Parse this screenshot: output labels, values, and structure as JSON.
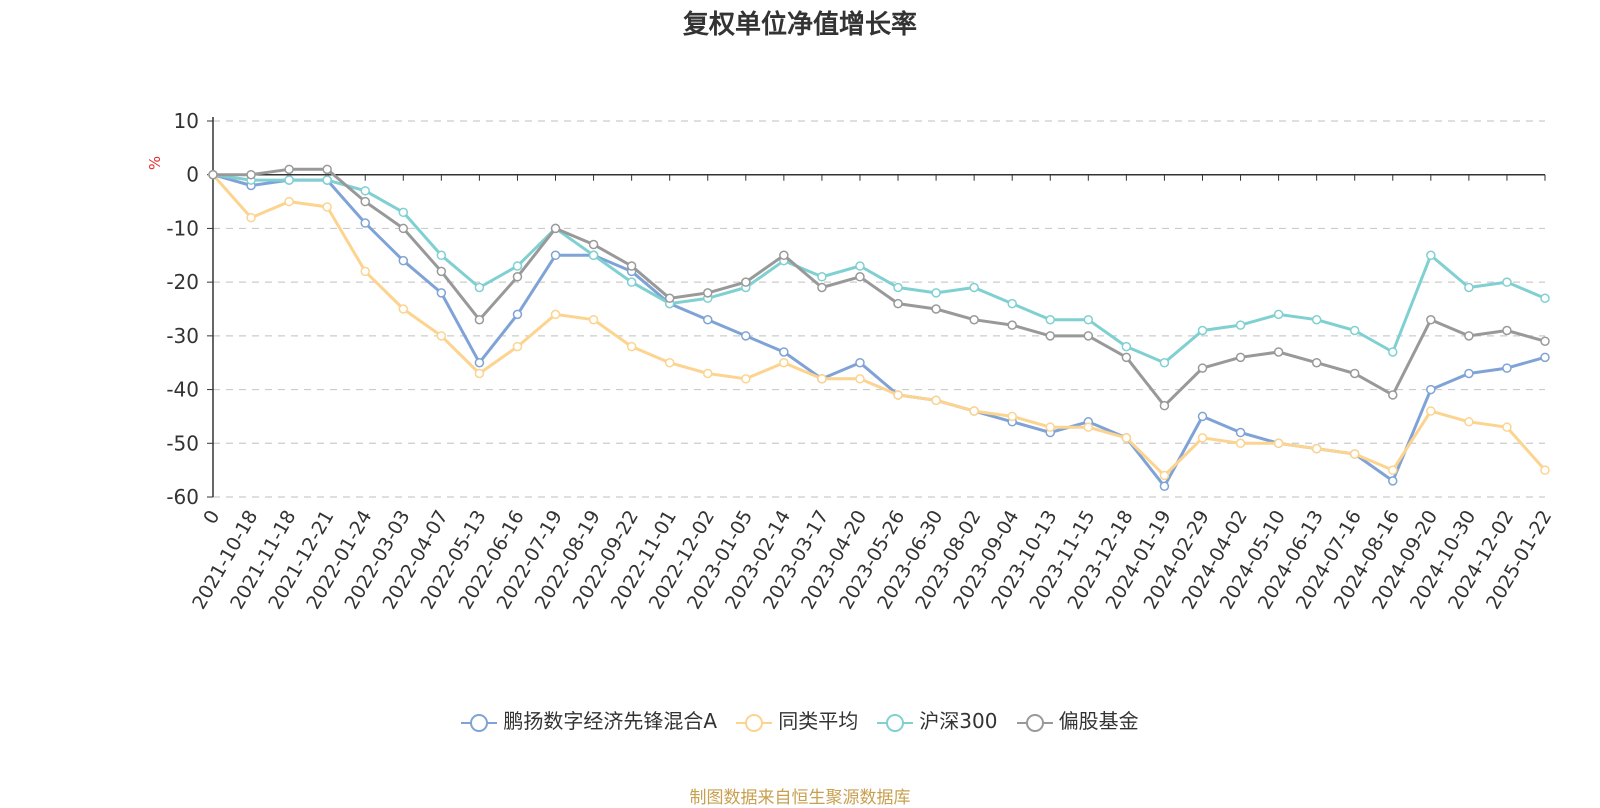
{
  "chart_data": {
    "type": "line",
    "title": "复权单位净值增长率",
    "ylabel": "%",
    "xlabel": "",
    "ylim": [
      -60,
      10
    ],
    "yticks": [
      10,
      0,
      -10,
      -20,
      -30,
      -40,
      -50,
      -60
    ],
    "grid": true,
    "legend_position": "bottom",
    "categories": [
      "0",
      "2021-10-18",
      "2021-11-18",
      "2021-12-21",
      "2022-01-24",
      "2022-03-03",
      "2022-04-07",
      "2022-05-13",
      "2022-06-16",
      "2022-07-19",
      "2022-08-19",
      "2022-09-22",
      "2022-11-01",
      "2022-12-02",
      "2023-01-05",
      "2023-02-14",
      "2023-03-17",
      "2023-04-20",
      "2023-05-26",
      "2023-06-30",
      "2023-08-02",
      "2023-09-04",
      "2023-10-13",
      "2023-11-15",
      "2023-12-18",
      "2024-01-19",
      "2024-02-29",
      "2024-04-02",
      "2024-05-10",
      "2024-06-13",
      "2024-07-16",
      "2024-08-16",
      "2024-09-20",
      "2024-10-30",
      "2024-12-02",
      "2025-01-22"
    ],
    "series": [
      {
        "name": "鹏扬数字经济先锋混合A",
        "color": "#7fa3d6",
        "values": [
          0,
          -2,
          -1,
          -1,
          -9,
          -16,
          -22,
          -35,
          -26,
          -15,
          -15,
          -18,
          -24,
          -27,
          -30,
          -33,
          -38,
          -35,
          -41,
          -42,
          -44,
          -46,
          -48,
          -46,
          -49,
          -58,
          -45,
          -48,
          -50,
          -51,
          -52,
          -57,
          -40,
          -37,
          -36,
          -34
        ]
      },
      {
        "name": "同类平均",
        "color": "#fcd48f",
        "values": [
          0,
          -8,
          -5,
          -6,
          -18,
          -25,
          -30,
          -37,
          -32,
          -26,
          -27,
          -32,
          -35,
          -37,
          -38,
          -35,
          -38,
          -38,
          -41,
          -42,
          -44,
          -45,
          -47,
          -47,
          -49,
          -56,
          -49,
          -50,
          -50,
          -51,
          -52,
          -55,
          -44,
          -46,
          -47,
          -55
        ]
      },
      {
        "name": "沪深300",
        "color": "#80d0d2",
        "values": [
          0,
          -1,
          -1,
          -1,
          -3,
          -7,
          -15,
          -21,
          -17,
          -10,
          -15,
          -20,
          -24,
          -23,
          -21,
          -16,
          -19,
          -17,
          -21,
          -22,
          -21,
          -24,
          -27,
          -27,
          -32,
          -35,
          -29,
          -28,
          -26,
          -27,
          -29,
          -33,
          -15,
          -21,
          -20,
          -23
        ]
      },
      {
        "name": "偏股基金",
        "color": "#999999",
        "values": [
          0,
          0,
          1,
          1,
          -5,
          -10,
          -18,
          -27,
          -19,
          -10,
          -13,
          -17,
          -23,
          -22,
          -20,
          -15,
          -21,
          -19,
          -24,
          -25,
          -27,
          -28,
          -30,
          -30,
          -34,
          -43,
          -36,
          -34,
          -33,
          -35,
          -37,
          -41,
          -27,
          -30,
          -29,
          -31
        ]
      }
    ]
  },
  "legend": {
    "items": [
      {
        "label": "鹏扬数字经济先锋混合A",
        "color": "#7fa3d6"
      },
      {
        "label": "同类平均",
        "color": "#fcd48f"
      },
      {
        "label": "沪深300",
        "color": "#80d0d2"
      },
      {
        "label": "偏股基金",
        "color": "#999999"
      }
    ]
  },
  "footer": {
    "source": "制图数据来自恒生聚源数据库"
  }
}
